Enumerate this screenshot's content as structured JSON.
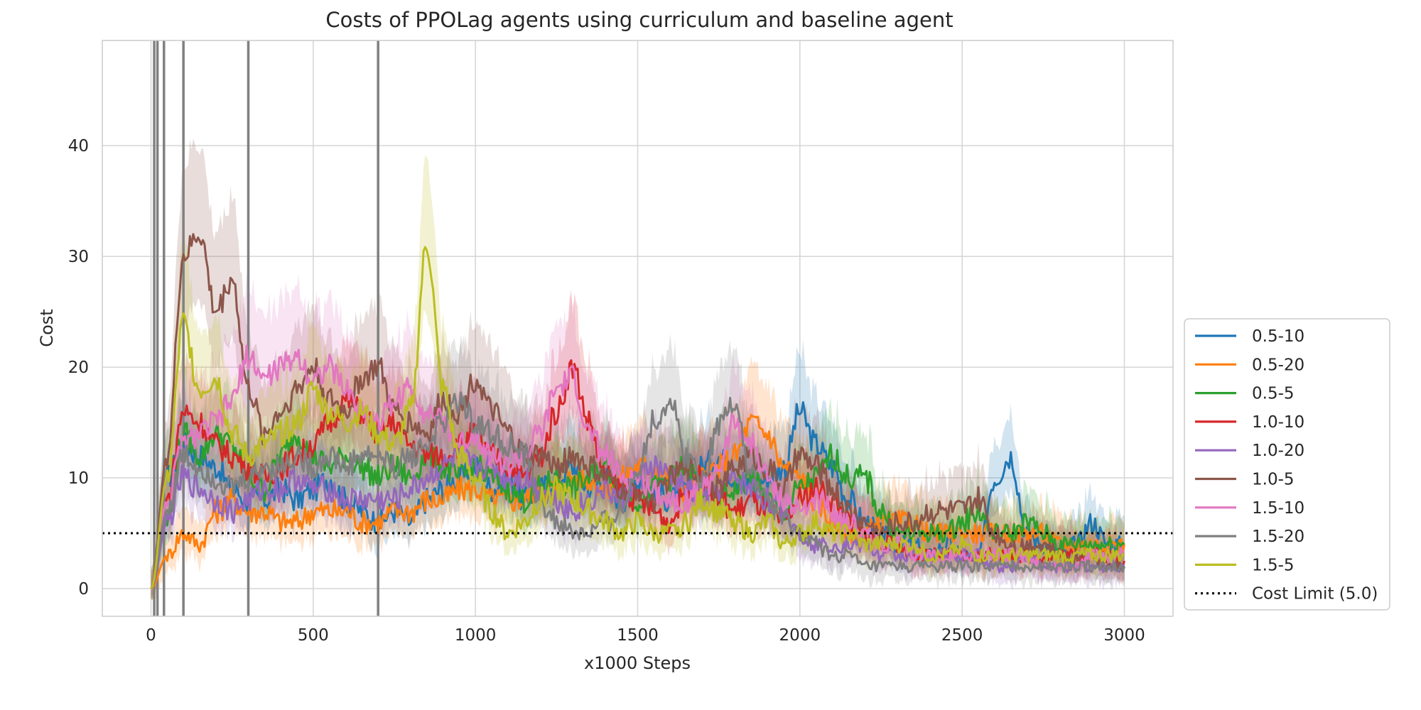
{
  "chart_data": {
    "type": "line",
    "title": "Costs of PPOLag agents using curriculum and baseline agent",
    "xlabel": "x1000 Steps",
    "ylabel": "Cost",
    "xlim": [
      -150,
      3150
    ],
    "ylim": [
      -2.5,
      49.5
    ],
    "xticks": [
      0,
      500,
      1000,
      1500,
      2000,
      2500,
      3000
    ],
    "yticks": [
      0,
      10,
      20,
      30,
      40
    ],
    "grid": true,
    "legend_position": "lower-right-outside",
    "curriculum_switch_steps": [
      10,
      20,
      40,
      100,
      300,
      700
    ],
    "switch_line_color": "#808080",
    "cost_limit": {
      "label": "Cost Limit (5.0)",
      "value": 5.0,
      "color": "#000000"
    },
    "series": [
      {
        "name": "0.5-10",
        "color": "#1f77b4",
        "x": [
          0,
          50,
          100,
          150,
          200,
          250,
          300,
          350,
          400,
          450,
          500,
          550,
          600,
          650,
          700,
          750,
          800,
          850,
          900,
          950,
          1000,
          1050,
          1100,
          1150,
          1200,
          1250,
          1300,
          1350,
          1400,
          1450,
          1500,
          1550,
          1600,
          1650,
          1700,
          1750,
          1800,
          1850,
          1900,
          1950,
          2000,
          2050,
          2100,
          2150,
          2200,
          2250,
          2300,
          2350,
          2400,
          2450,
          2500,
          2550,
          2600,
          2650,
          2700,
          2750,
          2800,
          2850,
          2900,
          2950,
          3000
        ],
        "y": [
          0,
          10,
          13,
          12,
          11,
          9,
          8,
          8,
          9,
          8,
          9,
          10,
          8,
          7,
          6,
          7,
          6,
          8,
          9,
          10,
          11,
          9,
          10,
          8,
          9,
          10,
          11,
          9,
          10,
          8,
          10,
          9,
          8,
          9,
          11,
          12,
          10,
          9,
          10,
          11,
          16,
          13,
          11,
          8,
          6,
          5,
          4,
          4,
          3,
          4,
          3,
          3,
          10,
          12,
          5,
          4,
          3,
          4,
          6,
          4,
          4
        ]
      },
      {
        "name": "0.5-20",
        "color": "#ff7f0e",
        "x": [
          0,
          50,
          100,
          150,
          200,
          250,
          300,
          350,
          400,
          450,
          500,
          550,
          600,
          650,
          700,
          750,
          800,
          850,
          900,
          950,
          1000,
          1050,
          1100,
          1150,
          1200,
          1250,
          1300,
          1350,
          1400,
          1450,
          1500,
          1550,
          1600,
          1650,
          1700,
          1750,
          1800,
          1850,
          1900,
          1950,
          2000,
          2050,
          2100,
          2150,
          2200,
          2250,
          2300,
          2350,
          2400,
          2450,
          2500,
          2550,
          2600,
          2650,
          2700,
          2750,
          2800,
          2850,
          2900,
          2950,
          3000
        ],
        "y": [
          0,
          3,
          5,
          4,
          7,
          8,
          7,
          7,
          6,
          6,
          7,
          7,
          7,
          6,
          6,
          7,
          7,
          8,
          8,
          9,
          9,
          8,
          8,
          8,
          9,
          9,
          10,
          10,
          9,
          10,
          11,
          11,
          10,
          9,
          10,
          11,
          12,
          15,
          14,
          11,
          10,
          8,
          6,
          5,
          5,
          6,
          6,
          6,
          5,
          5,
          5,
          5,
          5,
          5,
          5,
          5,
          4,
          4,
          4,
          4,
          4
        ]
      },
      {
        "name": "0.5-5",
        "color": "#2ca02c",
        "x": [
          0,
          50,
          100,
          150,
          200,
          250,
          300,
          350,
          400,
          450,
          500,
          550,
          600,
          650,
          700,
          750,
          800,
          850,
          900,
          950,
          1000,
          1050,
          1100,
          1150,
          1200,
          1250,
          1300,
          1350,
          1400,
          1450,
          1500,
          1550,
          1600,
          1650,
          1700,
          1750,
          1800,
          1850,
          1900,
          1950,
          2000,
          2050,
          2100,
          2150,
          2200,
          2250,
          2300,
          2350,
          2400,
          2450,
          2500,
          2550,
          2600,
          2650,
          2700,
          2750,
          2800,
          2850,
          2900,
          2950,
          3000
        ],
        "y": [
          0,
          6,
          14,
          12,
          14,
          13,
          10,
          9,
          12,
          14,
          12,
          11,
          12,
          11,
          10,
          11,
          10,
          12,
          11,
          10,
          11,
          10,
          9,
          8,
          9,
          10,
          9,
          10,
          11,
          9,
          8,
          9,
          10,
          11,
          9,
          8,
          9,
          10,
          8,
          7,
          9,
          10,
          12,
          10,
          10,
          7,
          5,
          5,
          5,
          5,
          6,
          7,
          5,
          5,
          6,
          5,
          4,
          4,
          4,
          4,
          4
        ]
      },
      {
        "name": "1.0-10",
        "color": "#d62728",
        "x": [
          0,
          50,
          100,
          150,
          200,
          250,
          300,
          350,
          400,
          450,
          500,
          550,
          600,
          650,
          700,
          750,
          800,
          850,
          900,
          950,
          1000,
          1050,
          1100,
          1150,
          1200,
          1250,
          1300,
          1350,
          1400,
          1450,
          1500,
          1550,
          1600,
          1650,
          1700,
          1750,
          1800,
          1850,
          1900,
          1950,
          2000,
          2050,
          2100,
          2150,
          2200,
          2250,
          2300,
          2350,
          2400,
          2450,
          2500,
          2550,
          2600,
          2650,
          2700,
          2750,
          2800,
          2850,
          2900,
          2950,
          3000
        ],
        "y": [
          0,
          8,
          16,
          15,
          13,
          12,
          11,
          10,
          11,
          12,
          13,
          15,
          17,
          16,
          14,
          15,
          13,
          12,
          12,
          13,
          14,
          12,
          11,
          10,
          12,
          16,
          20,
          15,
          10,
          9,
          8,
          7,
          6,
          9,
          10,
          8,
          7,
          8,
          7,
          6,
          8,
          9,
          8,
          6,
          5,
          4,
          4,
          3,
          3,
          3,
          3,
          3,
          3,
          3,
          3,
          3,
          3,
          3,
          3,
          3,
          2.5
        ]
      },
      {
        "name": "1.0-20",
        "color": "#9467bd",
        "x": [
          0,
          50,
          100,
          150,
          200,
          250,
          300,
          350,
          400,
          450,
          500,
          550,
          600,
          650,
          700,
          750,
          800,
          850,
          900,
          950,
          1000,
          1050,
          1100,
          1150,
          1200,
          1250,
          1300,
          1350,
          1400,
          1450,
          1500,
          1550,
          1600,
          1650,
          1700,
          1750,
          1800,
          1850,
          1900,
          1950,
          2000,
          2050,
          2100,
          2150,
          2200,
          2250,
          2300,
          2350,
          2400,
          2450,
          2500,
          2550,
          2600,
          2650,
          2700,
          2750,
          2800,
          2850,
          2900,
          2950,
          3000
        ],
        "y": [
          0,
          6,
          10,
          9,
          8,
          7,
          8,
          9,
          9,
          10,
          9,
          9,
          8,
          8,
          8,
          8,
          9,
          10,
          11,
          12,
          11,
          11,
          10,
          10,
          9,
          8,
          7,
          8,
          9,
          8,
          10,
          11,
          10,
          9,
          8,
          9,
          10,
          9,
          8,
          7,
          5,
          4,
          4,
          4,
          4,
          3,
          3,
          3,
          3,
          3,
          3,
          3,
          2,
          2,
          3,
          2,
          2,
          2,
          2,
          2,
          2
        ]
      },
      {
        "name": "1.0-5",
        "color": "#8c564b",
        "x": [
          0,
          50,
          100,
          150,
          200,
          250,
          300,
          350,
          400,
          450,
          500,
          550,
          600,
          650,
          700,
          750,
          800,
          850,
          900,
          950,
          1000,
          1050,
          1100,
          1150,
          1200,
          1250,
          1300,
          1350,
          1400,
          1450,
          1500,
          1550,
          1600,
          1650,
          1700,
          1750,
          1800,
          1850,
          1900,
          1950,
          2000,
          2050,
          2100,
          2150,
          2200,
          2250,
          2300,
          2350,
          2400,
          2450,
          2500,
          2550,
          2600,
          2650,
          2700,
          2750,
          2800,
          2850,
          2900,
          2950,
          3000
        ],
        "y": [
          0,
          12,
          30,
          32,
          25,
          28,
          18,
          14,
          16,
          18,
          20,
          17,
          16,
          19,
          20,
          16,
          15,
          14,
          17,
          16,
          19,
          16,
          14,
          12,
          12,
          11,
          12,
          11,
          10,
          9,
          9,
          8,
          10,
          11,
          10,
          9,
          11,
          12,
          11,
          9,
          12,
          11,
          9,
          7,
          6,
          5,
          6,
          6,
          7,
          7,
          7,
          8,
          5,
          4,
          4,
          4,
          3,
          3,
          3,
          2,
          2
        ]
      },
      {
        "name": "1.5-10",
        "color": "#e377c2",
        "x": [
          0,
          50,
          100,
          150,
          200,
          250,
          300,
          350,
          400,
          450,
          500,
          550,
          600,
          650,
          700,
          750,
          800,
          850,
          900,
          950,
          1000,
          1050,
          1100,
          1150,
          1200,
          1250,
          1300,
          1350,
          1400,
          1450,
          1500,
          1550,
          1600,
          1650,
          1700,
          1750,
          1800,
          1850,
          1900,
          1950,
          2000,
          2050,
          2100,
          2150,
          2200,
          2250,
          2300,
          2350,
          2400,
          2450,
          2500,
          2550,
          2600,
          2650,
          2700,
          2750,
          2800,
          2850,
          2900,
          2950,
          3000
        ],
        "y": [
          0,
          8,
          13,
          14,
          15,
          17,
          21,
          19,
          20,
          21,
          19,
          20,
          18,
          16,
          15,
          17,
          18,
          16,
          15,
          13,
          14,
          12,
          11,
          12,
          14,
          18,
          19,
          14,
          12,
          10,
          10,
          9,
          8,
          8,
          9,
          11,
          15,
          13,
          10,
          8,
          7,
          8,
          7,
          6,
          5,
          4,
          4,
          3,
          3,
          3,
          3,
          3,
          3,
          3,
          3,
          2,
          2,
          2,
          3,
          3,
          3
        ]
      },
      {
        "name": "1.5-20",
        "color": "#7f7f7f",
        "x": [
          0,
          50,
          100,
          150,
          200,
          250,
          300,
          350,
          400,
          450,
          500,
          550,
          600,
          650,
          700,
          750,
          800,
          850,
          900,
          950,
          1000,
          1050,
          1100,
          1150,
          1200,
          1250,
          1300,
          1350,
          1400,
          1450,
          1500,
          1550,
          1600,
          1650,
          1700,
          1750,
          1800,
          1850,
          1900,
          1950,
          2000,
          2050,
          2100,
          2150,
          2200,
          2250,
          2300,
          2350,
          2400,
          2450,
          2500,
          2550,
          2600,
          2650,
          2700,
          2750,
          2800,
          2850,
          2900,
          2950,
          3000
        ],
        "y": [
          0,
          7,
          12,
          11,
          10,
          9,
          10,
          11,
          11,
          12,
          11,
          12,
          11,
          12,
          12,
          11,
          12,
          13,
          15,
          17,
          15,
          14,
          13,
          12,
          8,
          6,
          5,
          5,
          6,
          7,
          11,
          15,
          17,
          12,
          10,
          15,
          17,
          10,
          8,
          6,
          5,
          4,
          3,
          3,
          2,
          2,
          2,
          2,
          2,
          2,
          2,
          2,
          2,
          2,
          2,
          2,
          2,
          2,
          2,
          2,
          2
        ]
      },
      {
        "name": "1.5-5",
        "color": "#bcbd22",
        "x": [
          0,
          50,
          100,
          150,
          200,
          250,
          300,
          350,
          400,
          450,
          500,
          550,
          600,
          650,
          700,
          750,
          800,
          850,
          900,
          950,
          1000,
          1050,
          1100,
          1150,
          1200,
          1250,
          1300,
          1350,
          1400,
          1450,
          1500,
          1550,
          1600,
          1650,
          1700,
          1750,
          1800,
          1850,
          1900,
          1950,
          2000,
          2050,
          2100,
          2150,
          2200,
          2250,
          2300,
          2350,
          2400,
          2450,
          2500,
          2550,
          2600,
          2650,
          2700,
          2750,
          2800,
          2850,
          2900,
          2950,
          3000
        ],
        "y": [
          0,
          10,
          24,
          18,
          19,
          14,
          12,
          13,
          14,
          15,
          18,
          16,
          15,
          16,
          14,
          13,
          16,
          31,
          18,
          12,
          10,
          7,
          5,
          6,
          8,
          9,
          8,
          7,
          6,
          5,
          6,
          5,
          5,
          6,
          8,
          7,
          6,
          5,
          6,
          4,
          5,
          6,
          5,
          5,
          4,
          4,
          4,
          4,
          3,
          3,
          4,
          3,
          3,
          3,
          3,
          3,
          3,
          3,
          3,
          3,
          3
        ]
      }
    ]
  }
}
